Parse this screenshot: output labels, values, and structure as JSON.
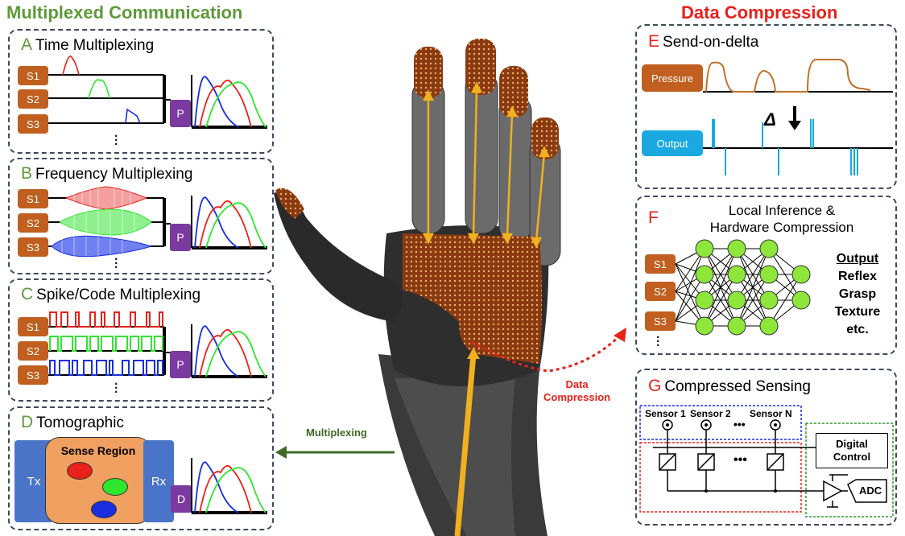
{
  "headings": {
    "left": "Multiplexed Communication",
    "right": "Data Compression"
  },
  "panels": {
    "A": {
      "letter": "A",
      "title": "Time Multiplexing"
    },
    "B": {
      "letter": "B",
      "title": "Frequency Multiplexing"
    },
    "C": {
      "letter": "C",
      "title": "Spike/Code Multiplexing"
    },
    "D": {
      "letter": "D",
      "title": "Tomographic",
      "tx": "Tx",
      "rx": "Rx",
      "sense": "Sense Region",
      "d": "D"
    },
    "E": {
      "letter": "E",
      "title": "Send-on-delta",
      "pressure": "Pressure",
      "output": "Output",
      "delta": "Δ"
    },
    "F": {
      "letter": "F",
      "title_line1": "Local Inference &",
      "title_line2": "Hardware Compression",
      "output_title": "Output",
      "outputs": [
        "Reflex",
        "Grasp",
        "Texture",
        "etc."
      ]
    },
    "G": {
      "letter": "G",
      "title": "Compressed Sensing",
      "sensors": [
        "Sensor 1",
        "Sensor 2",
        "Sensor N"
      ],
      "digital_control": "Digital Control",
      "adc": "ADC"
    }
  },
  "sensor_labels": [
    "S1",
    "S2",
    "S3"
  ],
  "p_label": "P",
  "center": {
    "multiplexing": "Multiplexing",
    "data_compression_line1": "Data",
    "data_compression_line2": "Compression"
  },
  "colors": {
    "green_heading": "#5e9a3a",
    "red_heading": "#e8211b",
    "sensor_box": "#c05f1f",
    "processor_box": "#7a3aa0",
    "signal_red": "#e8211b",
    "signal_green": "#2ee62e",
    "signal_blue": "#1a2ee0",
    "tomography_blue": "#4a74c8",
    "sense_region": "#f0a060",
    "nn_node": "#8ee63a",
    "output_cyan": "#1aa8e0",
    "pressure_line": "#c0702a",
    "arrow_gold": "#f0b020"
  }
}
